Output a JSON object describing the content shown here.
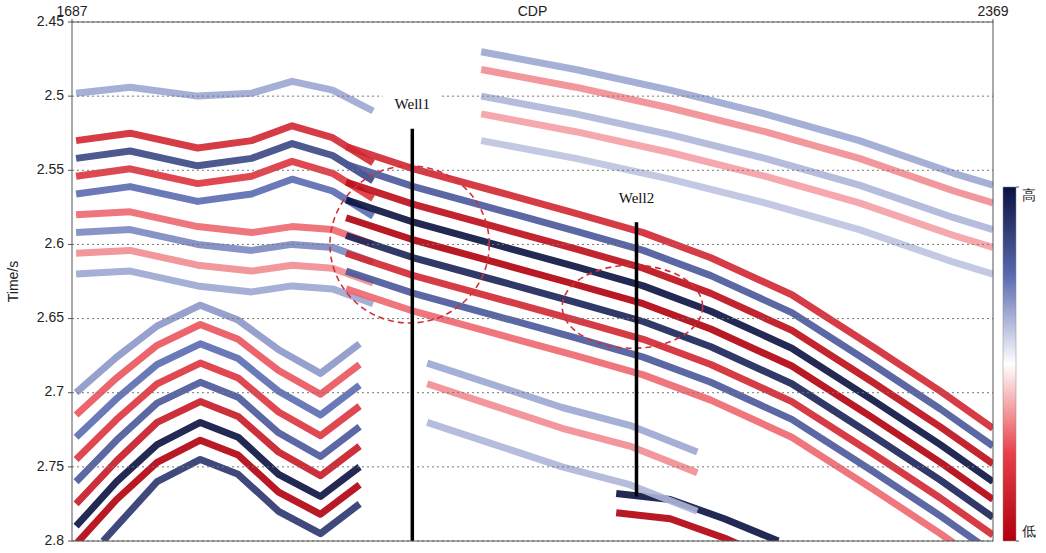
{
  "chart_data": {
    "type": "seismic",
    "x_label": "CDP",
    "y_label": "Time/s",
    "xlim": [
      1687,
      2369
    ],
    "xticks": [
      1687,
      2369
    ],
    "ylim": [
      2.45,
      2.8
    ],
    "yticks": [
      2.45,
      2.5,
      2.55,
      2.6,
      2.65,
      2.7,
      2.75,
      2.8
    ],
    "grid": true,
    "colorbar": {
      "range": [
        -1,
        1
      ],
      "ticks": [
        {
          "value": 1,
          "label": "高"
        },
        {
          "value": -1,
          "label": "低"
        }
      ]
    },
    "reflectors": [
      {
        "amplitude": 1,
        "x": [
          1690,
          1720,
          1750,
          1782,
          1810,
          1840,
          1871,
          1900
        ],
        "values": [
          2.79,
          2.76,
          2.735,
          2.72,
          2.73,
          2.755,
          2.77,
          2.75
        ]
      },
      {
        "amplitude": -1,
        "x": [
          1690,
          1720,
          1750,
          1782,
          1810,
          1840,
          1871,
          1900
        ],
        "values": [
          2.802,
          2.772,
          2.747,
          2.732,
          2.742,
          2.767,
          2.782,
          2.762
        ]
      },
      {
        "amplitude": 0.8,
        "x": [
          1710,
          1750,
          1782,
          1810,
          1840,
          1871,
          1900
        ],
        "values": [
          2.8,
          2.76,
          2.745,
          2.755,
          2.78,
          2.795,
          2.775
        ]
      },
      {
        "amplitude": -0.8,
        "x": [
          1690,
          1720,
          1750,
          1782,
          1810,
          1840,
          1871,
          1900
        ],
        "values": [
          2.775,
          2.746,
          2.72,
          2.706,
          2.716,
          2.74,
          2.756,
          2.736
        ]
      },
      {
        "amplitude": 0.6,
        "x": [
          1690,
          1720,
          1750,
          1782,
          1810,
          1840,
          1871,
          1900
        ],
        "values": [
          2.76,
          2.732,
          2.707,
          2.693,
          2.703,
          2.727,
          2.743,
          2.723
        ]
      },
      {
        "amplitude": -0.6,
        "x": [
          1690,
          1720,
          1750,
          1782,
          1810,
          1840,
          1871,
          1900
        ],
        "values": [
          2.745,
          2.718,
          2.694,
          2.68,
          2.69,
          2.713,
          2.729,
          2.709
        ]
      },
      {
        "amplitude": 0.5,
        "x": [
          1690,
          1720,
          1750,
          1782,
          1810,
          1840,
          1871,
          1900
        ],
        "values": [
          2.73,
          2.704,
          2.681,
          2.667,
          2.677,
          2.699,
          2.715,
          2.695
        ]
      },
      {
        "amplitude": -0.45,
        "x": [
          1690,
          1720,
          1750,
          1782,
          1810,
          1840,
          1871,
          1900
        ],
        "values": [
          2.715,
          2.69,
          2.668,
          2.654,
          2.664,
          2.685,
          2.701,
          2.681
        ]
      },
      {
        "amplitude": 0.35,
        "x": [
          1690,
          1720,
          1750,
          1782,
          1810,
          1840,
          1871,
          1900
        ],
        "values": [
          2.7,
          2.676,
          2.655,
          2.641,
          2.651,
          2.671,
          2.687,
          2.667
        ]
      },
      {
        "amplitude": 0.3,
        "x": [
          1690,
          1730,
          1780,
          1820,
          1850,
          1880,
          1910
        ],
        "values": [
          2.498,
          2.494,
          2.5,
          2.498,
          2.49,
          2.496,
          2.51
        ]
      },
      {
        "amplitude": -0.7,
        "x": [
          1690,
          1730,
          1780,
          1820,
          1850,
          1880,
          1910
        ],
        "values": [
          2.53,
          2.525,
          2.535,
          2.53,
          2.52,
          2.528,
          2.545
        ]
      },
      {
        "amplitude": 0.7,
        "x": [
          1690,
          1730,
          1780,
          1820,
          1850,
          1880,
          1910
        ],
        "values": [
          2.542,
          2.537,
          2.547,
          2.542,
          2.532,
          2.54,
          2.557
        ]
      },
      {
        "amplitude": -0.6,
        "x": [
          1690,
          1730,
          1780,
          1820,
          1850,
          1880,
          1910
        ],
        "values": [
          2.554,
          2.549,
          2.559,
          2.554,
          2.544,
          2.552,
          2.569
        ]
      },
      {
        "amplitude": 0.5,
        "x": [
          1690,
          1730,
          1780,
          1820,
          1850,
          1880,
          1910
        ],
        "values": [
          2.566,
          2.561,
          2.571,
          2.566,
          2.556,
          2.564,
          2.581
        ]
      },
      {
        "amplitude": -0.4,
        "x": [
          1690,
          1730,
          1780,
          1820,
          1850,
          1880,
          1910
        ],
        "values": [
          2.58,
          2.578,
          2.588,
          2.592,
          2.588,
          2.59,
          2.6
        ]
      },
      {
        "amplitude": 0.4,
        "x": [
          1690,
          1730,
          1780,
          1820,
          1850,
          1880,
          1910
        ],
        "values": [
          2.592,
          2.59,
          2.6,
          2.604,
          2.6,
          2.602,
          2.612
        ]
      },
      {
        "amplitude": -0.3,
        "x": [
          1690,
          1730,
          1780,
          1820,
          1850,
          1880,
          1910
        ],
        "values": [
          2.606,
          2.604,
          2.614,
          2.618,
          2.614,
          2.616,
          2.626
        ]
      },
      {
        "amplitude": 0.3,
        "x": [
          1690,
          1730,
          1780,
          1820,
          1850,
          1880,
          1910
        ],
        "values": [
          2.62,
          2.618,
          2.628,
          2.632,
          2.628,
          2.63,
          2.64
        ]
      },
      {
        "amplitude": -0.7,
        "x": [
          1890,
          1940,
          2000,
          2060,
          2110,
          2160,
          2220,
          2280,
          2330,
          2369
        ],
        "values": [
          2.534,
          2.549,
          2.564,
          2.579,
          2.592,
          2.609,
          2.634,
          2.669,
          2.699,
          2.724
        ]
      },
      {
        "amplitude": 0.6,
        "x": [
          1890,
          1940,
          2000,
          2060,
          2110,
          2160,
          2220,
          2280,
          2330,
          2369
        ],
        "values": [
          2.546,
          2.561,
          2.576,
          2.591,
          2.604,
          2.621,
          2.646,
          2.681,
          2.711,
          2.736
        ]
      },
      {
        "amplitude": -0.9,
        "x": [
          1890,
          1940,
          2000,
          2060,
          2110,
          2160,
          2220,
          2280,
          2330,
          2369
        ],
        "values": [
          2.558,
          2.573,
          2.588,
          2.603,
          2.616,
          2.633,
          2.658,
          2.693,
          2.723,
          2.748
        ]
      },
      {
        "amplitude": 1,
        "x": [
          1890,
          1940,
          2000,
          2060,
          2110,
          2160,
          2220,
          2280,
          2330,
          2369
        ],
        "values": [
          2.57,
          2.585,
          2.6,
          2.615,
          2.628,
          2.645,
          2.67,
          2.705,
          2.735,
          2.76
        ]
      },
      {
        "amplitude": -1,
        "x": [
          1890,
          1940,
          2000,
          2060,
          2110,
          2160,
          2220,
          2280,
          2330,
          2369
        ],
        "values": [
          2.582,
          2.597,
          2.612,
          2.627,
          2.64,
          2.657,
          2.682,
          2.717,
          2.747,
          2.772
        ]
      },
      {
        "amplitude": 0.9,
        "x": [
          1890,
          1940,
          2000,
          2060,
          2110,
          2160,
          2220,
          2280,
          2330,
          2369
        ],
        "values": [
          2.594,
          2.609,
          2.624,
          2.639,
          2.652,
          2.669,
          2.694,
          2.729,
          2.759,
          2.784
        ]
      },
      {
        "amplitude": -0.7,
        "x": [
          1890,
          1940,
          2000,
          2060,
          2110,
          2160,
          2220,
          2280,
          2330,
          2369
        ],
        "values": [
          2.606,
          2.621,
          2.636,
          2.651,
          2.664,
          2.681,
          2.706,
          2.741,
          2.771,
          2.796
        ]
      },
      {
        "amplitude": 0.6,
        "x": [
          1890,
          1940,
          2000,
          2060,
          2110,
          2160,
          2220,
          2280,
          2330,
          2369
        ],
        "values": [
          2.618,
          2.633,
          2.648,
          2.663,
          2.676,
          2.693,
          2.718,
          2.753,
          2.783,
          2.808
        ]
      },
      {
        "amplitude": -0.4,
        "x": [
          1890,
          1940,
          2000,
          2060,
          2110,
          2160,
          2220,
          2280,
          2330,
          2369
        ],
        "values": [
          2.63,
          2.645,
          2.66,
          2.675,
          2.688,
          2.705,
          2.73,
          2.765,
          2.795,
          2.82
        ]
      },
      {
        "amplitude": 0.3,
        "x": [
          1990,
          2060,
          2130,
          2200,
          2270,
          2340,
          2369
        ],
        "values": [
          2.47,
          2.482,
          2.496,
          2.512,
          2.53,
          2.552,
          2.56
        ]
      },
      {
        "amplitude": -0.3,
        "x": [
          1990,
          2060,
          2130,
          2200,
          2270,
          2340,
          2369
        ],
        "values": [
          2.482,
          2.494,
          2.508,
          2.524,
          2.542,
          2.564,
          2.572
        ]
      },
      {
        "amplitude": 0.25,
        "x": [
          1990,
          2060,
          2130,
          2200,
          2270,
          2340,
          2369
        ],
        "values": [
          2.5,
          2.512,
          2.526,
          2.542,
          2.56,
          2.582,
          2.59
        ]
      },
      {
        "amplitude": -0.25,
        "x": [
          1990,
          2060,
          2130,
          2200,
          2270,
          2340,
          2369
        ],
        "values": [
          2.512,
          2.524,
          2.538,
          2.554,
          2.572,
          2.594,
          2.602
        ]
      },
      {
        "amplitude": 0.2,
        "x": [
          1990,
          2060,
          2130,
          2200,
          2270,
          2340,
          2369
        ],
        "values": [
          2.53,
          2.542,
          2.556,
          2.572,
          2.59,
          2.612,
          2.62
        ]
      },
      {
        "amplitude": 1,
        "x": [
          2090,
          2130,
          2170,
          2210
        ],
        "values": [
          2.768,
          2.772,
          2.785,
          2.8
        ]
      },
      {
        "amplitude": -1,
        "x": [
          2090,
          2130,
          2170,
          2200
        ],
        "values": [
          2.781,
          2.785,
          2.798,
          2.81
        ]
      },
      {
        "amplitude": 0.3,
        "x": [
          1950,
          2000,
          2050,
          2100,
          2150
        ],
        "values": [
          2.68,
          2.695,
          2.71,
          2.722,
          2.74
        ]
      },
      {
        "amplitude": -0.3,
        "x": [
          1950,
          2000,
          2050,
          2100,
          2150
        ],
        "values": [
          2.694,
          2.709,
          2.724,
          2.736,
          2.754
        ]
      },
      {
        "amplitude": 0.25,
        "x": [
          1950,
          2000,
          2050,
          2100,
          2150
        ],
        "values": [
          2.72,
          2.735,
          2.75,
          2.762,
          2.78
        ]
      }
    ],
    "wells": [
      {
        "label": "Well1",
        "cdp": 1939,
        "time_top": 2.522,
        "time_bottom": 2.8
      },
      {
        "label": "Well2",
        "cdp": 2105,
        "time_top": 2.585,
        "time_bottom": 2.77
      }
    ],
    "highlights": [
      {
        "cdp": 1937,
        "time": 2.6,
        "cdp_radius": 59,
        "time_radius": 0.053
      },
      {
        "cdp": 2102,
        "time": 2.642,
        "cdp_radius": 52,
        "time_radius": 0.028
      }
    ]
  }
}
